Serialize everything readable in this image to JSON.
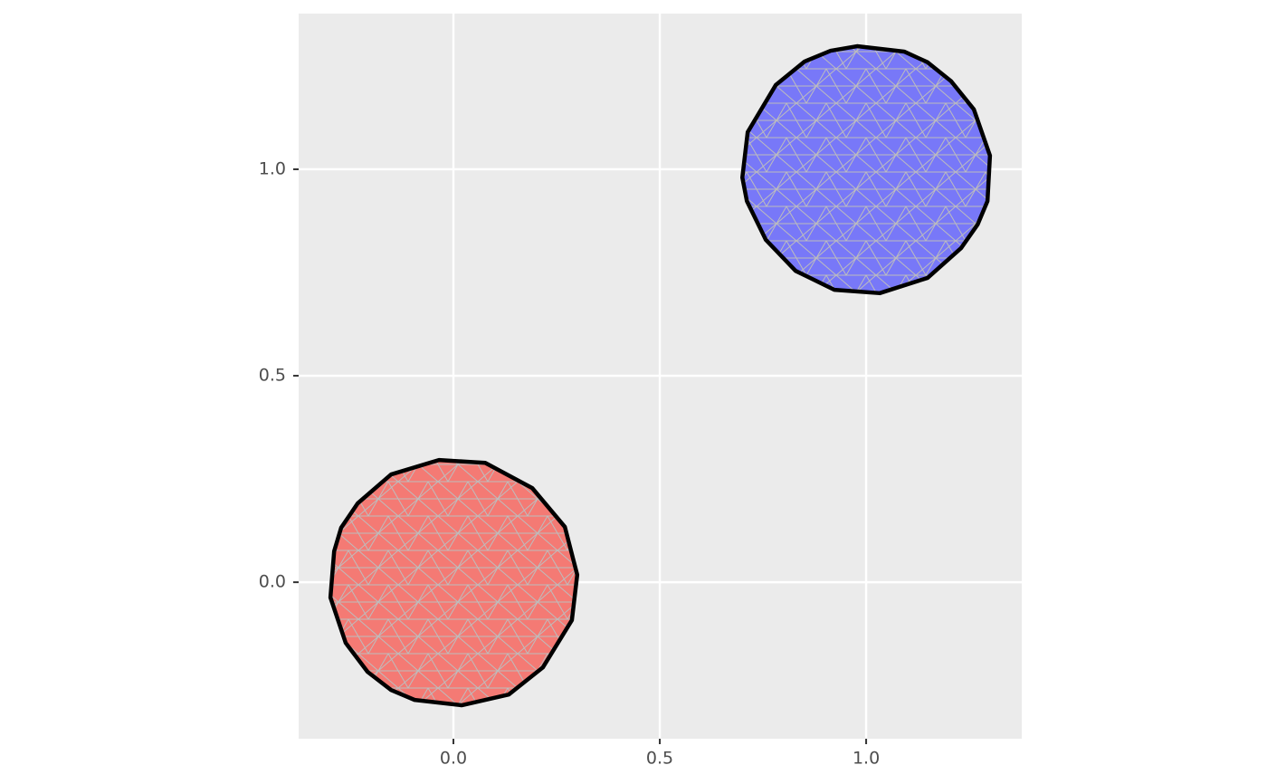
{
  "chart_data": {
    "type": "polygon",
    "xlim": [
      -0.375,
      1.377
    ],
    "ylim": [
      -0.379,
      1.377
    ],
    "xticks": [
      {
        "value": 0,
        "label": "0.0"
      },
      {
        "value": 0.5,
        "label": "0.5"
      },
      {
        "value": 1,
        "label": "1.0"
      }
    ],
    "yticks": [
      {
        "value": 0,
        "label": "0.0"
      },
      {
        "value": 0.5,
        "label": "0.5"
      },
      {
        "value": 1,
        "label": "1.0"
      }
    ],
    "grid": true,
    "polygons": [
      {
        "color": "#f47a74",
        "x": [
          -0.035,
          0.077,
          0.191,
          0.27,
          0.3,
          0.287,
          0.217,
          0.134,
          0.02,
          -0.094,
          -0.151,
          -0.208,
          -0.261,
          -0.298,
          -0.289,
          -0.272,
          -0.232,
          -0.151
        ],
        "y": [
          0.296,
          0.289,
          0.228,
          0.134,
          0.018,
          -0.092,
          -0.206,
          -0.272,
          -0.298,
          -0.285,
          -0.261,
          -0.217,
          -0.147,
          -0.037,
          0.075,
          0.132,
          0.191,
          0.261
        ]
      },
      {
        "color": "#7878f8",
        "x": [
          0.978,
          1.092,
          1.149,
          1.206,
          1.261,
          1.3,
          1.294,
          1.27,
          1.23,
          1.149,
          1.033,
          0.923,
          0.829,
          0.757,
          0.711,
          0.7,
          0.713,
          0.781,
          0.851,
          0.914
        ],
        "y": [
          1.298,
          1.285,
          1.259,
          1.213,
          1.145,
          1.033,
          0.923,
          0.866,
          0.809,
          0.737,
          0.7,
          0.708,
          0.754,
          0.829,
          0.923,
          0.98,
          1.09,
          1.204,
          1.261,
          1.287
        ]
      }
    ]
  }
}
